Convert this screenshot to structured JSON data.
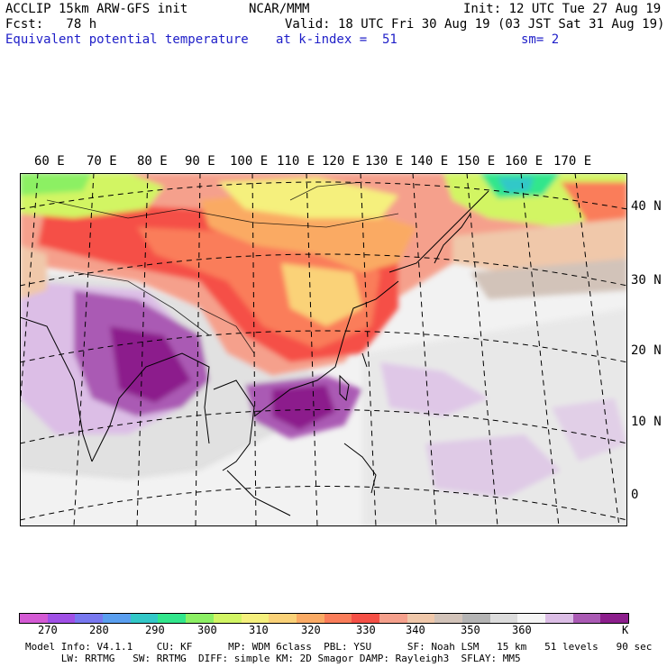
{
  "header": {
    "model": "ACCLIP 15km ARW-GFS init",
    "org": "NCAR/MMM",
    "init": "Init: 12 UTC Tue 27 Aug 19",
    "fcst": "Fcst:   78 h",
    "valid": "Valid: 18 UTC Fri 30 Aug 19 (03 JST Sat 31 Aug 19)",
    "field": "Equivalent potential temperature",
    "level": "at k-index =  51",
    "smooth": "sm= 2"
  },
  "map": {
    "lon_labels": [
      "60 E",
      "70 E",
      "80 E",
      "90 E",
      "100 E",
      "110 E",
      "120 E",
      "130 E",
      "140 E",
      "150 E",
      "160 E",
      "170 E"
    ],
    "lat_labels": [
      "40 N",
      "30 N",
      "20 N",
      "10 N",
      "0"
    ]
  },
  "colorbar": {
    "colors": [
      "#d45ad4",
      "#a050e6",
      "#7878f0",
      "#5a9ff0",
      "#32c8c8",
      "#32e68c",
      "#8cf064",
      "#d2f564",
      "#f5f07d",
      "#fad278",
      "#faaa64",
      "#fa7d5a",
      "#f55046",
      "#f5a08c",
      "#f0c8aa",
      "#d2c3b9",
      "#b4b4b4",
      "#dcdcdc",
      "#f5f5f5",
      "#dcbee6",
      "#aa5ab4",
      "#8c1e8c"
    ],
    "ticks": [
      "270",
      "280",
      "290",
      "300",
      "310",
      "320",
      "330",
      "340",
      "350",
      "360"
    ],
    "unit": "K"
  },
  "footer": {
    "line1": "Model Info: V4.1.1    CU: KF      MP: WDM 6class  PBL: YSU      SF: Noah LSM   15 km   51 levels   90 sec",
    "line2": "      LW: RRTMG   SW: RRTMG  DIFF: simple KM: 2D Smagor DAMP: Rayleigh3  SFLAY: MM5"
  }
}
